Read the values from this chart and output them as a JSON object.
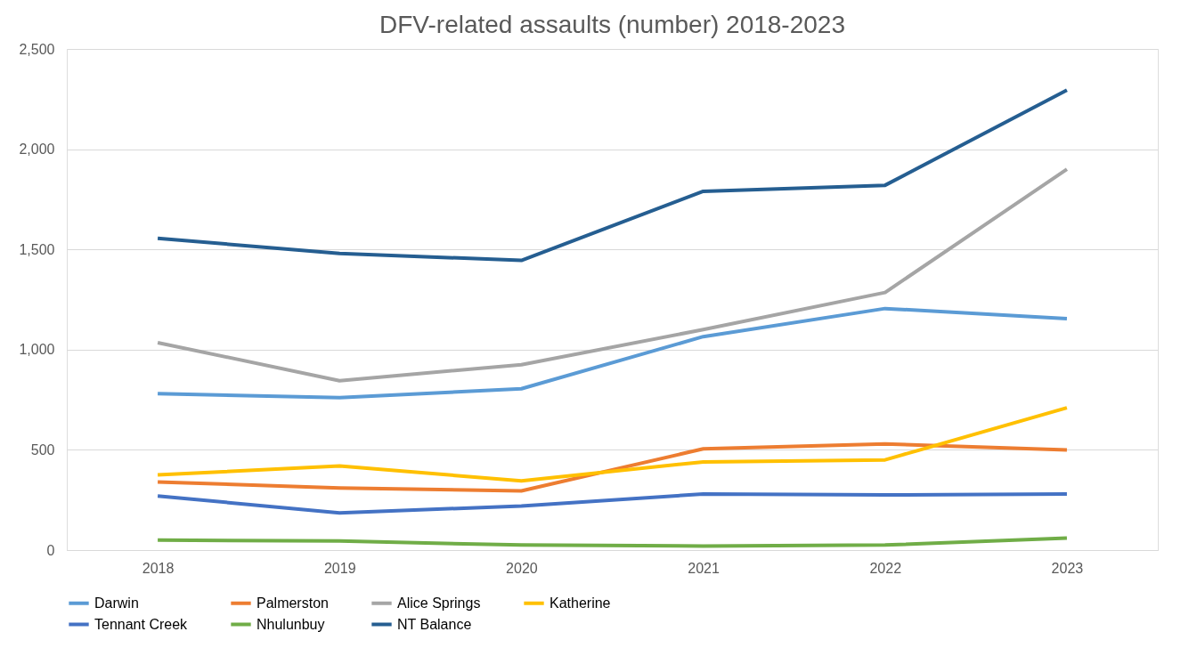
{
  "chart_data": {
    "type": "line",
    "title": "DFV-related assaults (number) 2018-2023",
    "categories": [
      "2018",
      "2019",
      "2020",
      "2021",
      "2022",
      "2023"
    ],
    "series": [
      {
        "name": "Darwin",
        "color": "#5b9bd5",
        "values": [
          780,
          760,
          805,
          1065,
          1205,
          1155
        ]
      },
      {
        "name": "Palmerston",
        "color": "#ed7d31",
        "values": [
          340,
          310,
          295,
          505,
          530,
          500
        ]
      },
      {
        "name": "Alice Springs",
        "color": "#a5a5a5",
        "values": [
          1035,
          845,
          925,
          1100,
          1285,
          1900
        ]
      },
      {
        "name": "Katherine",
        "color": "#ffc000",
        "values": [
          375,
          420,
          345,
          440,
          450,
          710
        ]
      },
      {
        "name": "Tennant Creek",
        "color": "#4472c4",
        "values": [
          270,
          185,
          220,
          280,
          275,
          280
        ]
      },
      {
        "name": "Nhulunbuy",
        "color": "#70ad47",
        "values": [
          50,
          45,
          25,
          20,
          25,
          60
        ]
      },
      {
        "name": "NT Balance",
        "color": "#255e91",
        "values": [
          1555,
          1480,
          1445,
          1790,
          1820,
          2295
        ]
      }
    ],
    "ylim": [
      0,
      2500
    ],
    "yticks": [
      {
        "value": 0,
        "label": "0"
      },
      {
        "value": 500,
        "label": "500"
      },
      {
        "value": 1000,
        "label": "1,000"
      },
      {
        "value": 1500,
        "label": "1,500"
      },
      {
        "value": 2000,
        "label": "2,000"
      },
      {
        "value": 2500,
        "label": "2,500"
      }
    ],
    "grid": "y",
    "legend": "bottom",
    "marker": "none",
    "line_style": "solid"
  }
}
